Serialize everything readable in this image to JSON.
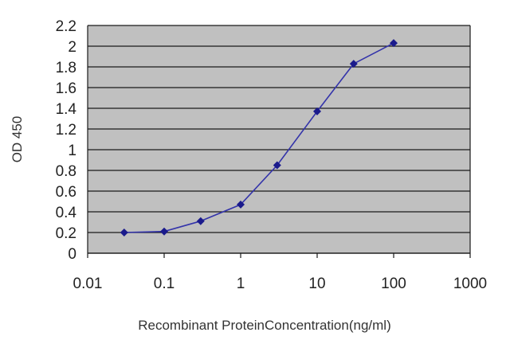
{
  "chart_data": {
    "type": "line",
    "xlabel": "Recombinant ProteinConcentration(ng/ml)",
    "ylabel": "OD 450",
    "xscale": "log",
    "xlim": [
      0.01,
      1000
    ],
    "ylim": [
      0,
      2.2
    ],
    "x_ticks": [
      "0.01",
      "0.1",
      "1",
      "10",
      "100",
      "1000"
    ],
    "y_ticks": [
      "0",
      "0.2",
      "0.4",
      "0.6",
      "0.8",
      "1",
      "1.2",
      "1.4",
      "1.6",
      "1.8",
      "2",
      "2.2"
    ],
    "grid": "horizontal",
    "plot_background": "#c0c0c0",
    "series": [
      {
        "color": "#3333aa",
        "marker_color": "#1a1a8c",
        "x": [
          0.03,
          0.1,
          0.3,
          1,
          3,
          10,
          30,
          100
        ],
        "y": [
          0.2,
          0.21,
          0.31,
          0.47,
          0.85,
          1.37,
          1.83,
          2.03
        ]
      }
    ]
  }
}
